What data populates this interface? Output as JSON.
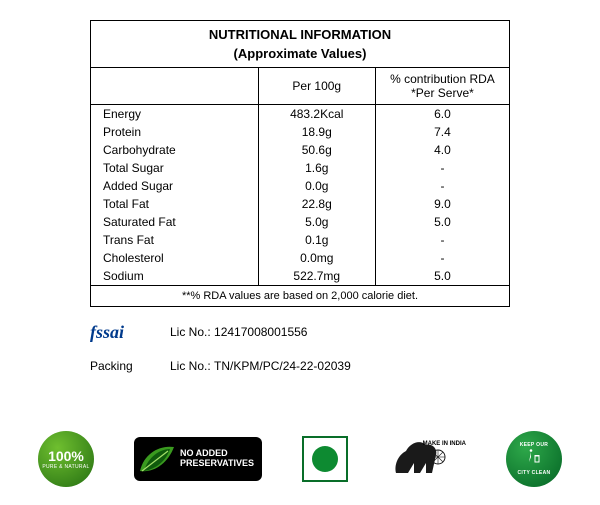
{
  "table": {
    "title": "NUTRITIONAL INFORMATION",
    "subtitle": "(Approximate Values)",
    "columns": {
      "nutrient": "",
      "per100": "Per 100g",
      "rda": "% contribution RDA *Per Serve*"
    },
    "rows": [
      {
        "nutrient": "Energy",
        "per100": "483.2Kcal",
        "rda": "6.0"
      },
      {
        "nutrient": "Protein",
        "per100": "18.9g",
        "rda": "7.4"
      },
      {
        "nutrient": "Carbohydrate",
        "per100": "50.6g",
        "rda": "4.0"
      },
      {
        "nutrient": "Total Sugar",
        "per100": "1.6g",
        "rda": "-"
      },
      {
        "nutrient": "Added Sugar",
        "per100": "0.0g",
        "rda": "-"
      },
      {
        "nutrient": "Total Fat",
        "per100": "22.8g",
        "rda": "9.0"
      },
      {
        "nutrient": "Saturated Fat",
        "per100": "5.0g",
        "rda": "5.0"
      },
      {
        "nutrient": "Trans Fat",
        "per100": "0.1g",
        "rda": "-"
      },
      {
        "nutrient": "Cholesterol",
        "per100": "0.0mg",
        "rda": "-"
      },
      {
        "nutrient": "Sodium",
        "per100": "522.7mg",
        "rda": "5.0"
      }
    ],
    "footer": "**% RDA values are based on 2,000 calorie diet."
  },
  "licenses": {
    "fssai_logo_text": "fssai",
    "fssai_lic_label": "Lic No.:",
    "fssai_lic_value": "12417008001556",
    "packing_label": "Packing",
    "packing_lic_label": "Lic No.:",
    "packing_lic_value": "TN/KPM/PC/24-22-02039"
  },
  "badges": {
    "pure_natural_value": "100%",
    "pure_natural_label": "PURE & NATURAL",
    "no_preserv_line1": "NO ADDED",
    "no_preserv_line2": "PRESERVATIVES",
    "make_in_india": "MAKE IN INDIA",
    "clean_city_line1": "KEEP OUR",
    "clean_city_line2": "CITY CLEAN"
  },
  "colors": {
    "border": "#000000",
    "fssai_blue": "#003a8c",
    "green_dark": "#0a6e2a",
    "green_light": "#2ea84a",
    "leaf_green": "#2f7a16",
    "veg_green": "#0d8a31"
  }
}
